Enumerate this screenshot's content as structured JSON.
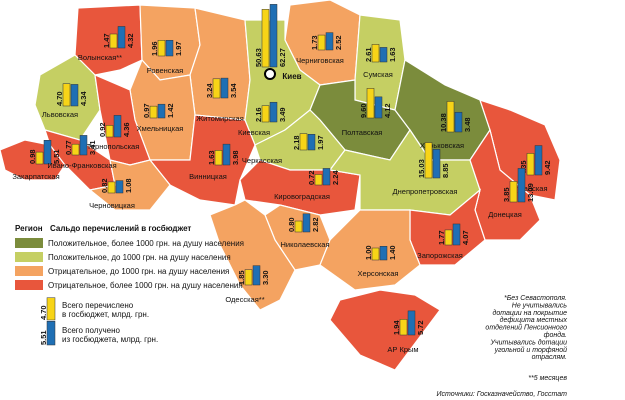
{
  "legend": {
    "header_region": "Регион",
    "header_title": "Сальдо перечислений в госбюджет",
    "items": [
      {
        "label": "Положительное, более 1000 грн. на душу населения",
        "color": "#7b8c3c"
      },
      {
        "label": "Положительное, до 1000 грн. на душу населения",
        "color": "#c5cf63"
      },
      {
        "label": "Отрицательное, до 1000 грн. на душу населения",
        "color": "#f4a361"
      },
      {
        "label": "Отрицательное, более 1000 грн. на душу населения",
        "color": "#e8563c"
      }
    ]
  },
  "bar_legend": {
    "sent": {
      "value": 4.7,
      "label": "4.70",
      "color": "#f7d417",
      "text": [
        "Всего перечислено",
        "в госбюджет, млрд. грн."
      ]
    },
    "received": {
      "value": 5.51,
      "label": "5.51",
      "color": "#1f6fb4",
      "text": [
        "Всего получено",
        "из госбюджета, млрд. грн."
      ]
    }
  },
  "regions": [
    {
      "name": "Волынская**",
      "color": "#e8563c",
      "sent": {
        "value": 1.47,
        "label": "1.47"
      },
      "received": {
        "value": 4.32,
        "label": "4.32"
      }
    },
    {
      "name": "Ровенская",
      "color": "#f4a361",
      "sent": {
        "value": 1.96,
        "label": "1.96"
      },
      "received": {
        "value": 1.97,
        "label": "1.97"
      }
    },
    {
      "name": "Житомирская",
      "color": "#f4a361",
      "sent": {
        "value": 3.24,
        "label": "3.24"
      },
      "received": {
        "value": 3.54,
        "label": "3.54"
      }
    },
    {
      "name": "Киев",
      "sent": {
        "value": 50.63,
        "label": "50.63"
      },
      "received": {
        "value": 62.27,
        "label": "62.27"
      }
    },
    {
      "name": "Черниговская",
      "color": "#f4a361",
      "sent": {
        "value": 1.73,
        "label": "1.73"
      },
      "received": {
        "value": 2.52,
        "label": "2.52"
      }
    },
    {
      "name": "Сумская",
      "color": "#c5cf63",
      "sent": {
        "value": 2.61,
        "label": "2.61"
      },
      "received": {
        "value": 1.63,
        "label": "1.63"
      }
    },
    {
      "name": "Львовская",
      "color": "#c5cf63",
      "sent": {
        "value": 4.7,
        "label": "4.70"
      },
      "received": {
        "value": 4.34,
        "label": "4.34"
      }
    },
    {
      "name": "Хмельницкая",
      "color": "#f4a361",
      "sent": {
        "value": 0.97,
        "label": "0.97"
      },
      "received": {
        "value": 1.42,
        "label": "1.42"
      }
    },
    {
      "name": "Киевская",
      "color": "#c5cf63",
      "sent": {
        "value": 2.16,
        "label": "2.16"
      },
      "received": {
        "value": 3.49,
        "label": "3.49"
      }
    },
    {
      "name": "Полтавская",
      "color": "#7b8c3c",
      "sent": {
        "value": 9.6,
        "label": "9.60"
      },
      "received": {
        "value": 4.12,
        "label": "4.12"
      }
    },
    {
      "name": "Харьковская",
      "color": "#7b8c3c",
      "sent": {
        "value": 10.38,
        "label": "10.38"
      },
      "received": {
        "value": 3.48,
        "label": "3.48"
      }
    },
    {
      "name": "Тернопольская",
      "color": "#e8563c",
      "sent": {
        "value": 0.92,
        "label": "0.92"
      },
      "received": {
        "value": 4.36,
        "label": "4.36"
      }
    },
    {
      "name": "Закарпатская",
      "color": "#e8563c",
      "sent": {
        "value": 0.98,
        "label": "0.98"
      },
      "received": {
        "value": 5.51,
        "label": "5.51"
      }
    },
    {
      "name": "Ивано-Франковская",
      "color": "#e8563c",
      "sent": {
        "value": 0.77,
        "label": "0.77"
      },
      "received": {
        "value": 3.41,
        "label": "3.41"
      }
    },
    {
      "name": "Винницкая",
      "color": "#e8563c",
      "sent": {
        "value": 1.63,
        "label": "1.63"
      },
      "received": {
        "value": 3.98,
        "label": "3.98"
      }
    },
    {
      "name": "Черкасская",
      "color": "#c5cf63",
      "sent": {
        "value": 2.18,
        "label": "2.18"
      },
      "received": {
        "value": 1.97,
        "label": "1.97"
      }
    },
    {
      "name": "Луганская",
      "color": "#e8563c",
      "sent": {
        "value": 4.35,
        "label": "4.35"
      },
      "received": {
        "value": 9.42,
        "label": "9.42"
      }
    },
    {
      "name": "Черновицкая",
      "color": "#f4a361",
      "sent": {
        "value": 0.82,
        "label": "0.82"
      },
      "received": {
        "value": 1.08,
        "label": "1.08"
      }
    },
    {
      "name": "Кировоградская",
      "color": "#e8563c",
      "sent": {
        "value": 0.72,
        "label": "0.72"
      },
      "received": {
        "value": 2.24,
        "label": "2.24"
      }
    },
    {
      "name": "Днепропетровская",
      "color": "#c5cf63",
      "sent": {
        "value": 15.03,
        "label": "15.03"
      },
      "received": {
        "value": 8.85,
        "label": "8.85"
      }
    },
    {
      "name": "Донецкая",
      "color": "#e8563c",
      "sent": {
        "value": 3.85,
        "label": "3.85"
      },
      "received": {
        "value": 13.09,
        "label": "13.09"
      }
    },
    {
      "name": "Николаевская",
      "color": "#f4a361",
      "sent": {
        "value": 0.8,
        "label": "0.80"
      },
      "received": {
        "value": 2.82,
        "label": "2.82"
      }
    },
    {
      "name": "Запорожская",
      "color": "#e8563c",
      "sent": {
        "value": 1.77,
        "label": "1.77"
      },
      "received": {
        "value": 4.07,
        "label": "4.07"
      }
    },
    {
      "name": "Херсонская",
      "color": "#f4a361",
      "sent": {
        "value": 1.0,
        "label": "1.00"
      },
      "received": {
        "value": 1.4,
        "label": "1.40"
      }
    },
    {
      "name": "Одесская**",
      "color": "#f4a361",
      "sent": {
        "value": 1.85,
        "label": "1.85"
      },
      "received": {
        "value": 3.3,
        "label": "3.30"
      }
    },
    {
      "name": "АР Крым",
      "color": "#e8563c",
      "sent": {
        "value": 1.94,
        "label": "1.94"
      },
      "received": {
        "value": 5.72,
        "label": "5.72"
      }
    }
  ],
  "notes": [
    "*Без Севастополя.",
    "Не учитывались",
    "дотации на покрытие",
    "дефицита местных",
    "отделений Пенсионного",
    "фонда.",
    "Учитывались дотации",
    "угольной и торфяной",
    "отраслям."
  ],
  "notes_months": "**5 месяцев",
  "source": "Источники: Госказначейство, Госстат"
}
